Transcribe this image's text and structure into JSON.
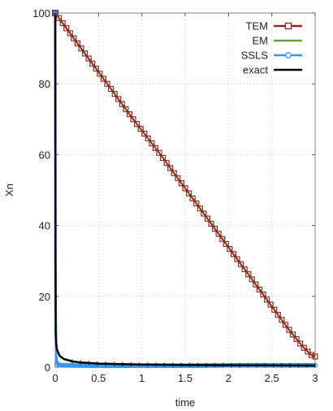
{
  "chart_data": {
    "type": "line",
    "title": "",
    "xlabel": "time",
    "ylabel": "Xn",
    "xlim": [
      0,
      3
    ],
    "ylim": [
      0,
      100
    ],
    "xticks": [
      0,
      0.5,
      1,
      1.5,
      2,
      2.5,
      3
    ],
    "xtick_labels": [
      "0",
      "0.5",
      "1",
      "1.5",
      "2",
      "2.5",
      "3"
    ],
    "yticks": [
      0,
      20,
      40,
      60,
      80,
      100
    ],
    "ytick_labels": [
      "0",
      "20",
      "40",
      "60",
      "80",
      "100"
    ],
    "grid": true,
    "legend_position": "top-right",
    "series": [
      {
        "name": "TEM",
        "color": "#8b2d1e",
        "marker": "square",
        "x": [
          0,
          0.3,
          0.6,
          0.9,
          1.2,
          1.5,
          1.8,
          2.1,
          2.4,
          2.7,
          2.85,
          2.95,
          3.0
        ],
        "y": [
          100,
          90,
          80,
          70,
          60.5,
          50.5,
          40.5,
          30.5,
          20.5,
          10.5,
          6,
          3.5,
          3
        ]
      },
      {
        "name": "EM",
        "color": "#5aa43a",
        "marker": "none",
        "x": [
          0,
          0.002,
          0.01,
          0.02,
          0.05,
          0.1,
          0.5,
          1,
          1.5,
          2,
          2.5,
          3
        ],
        "y": [
          100,
          25,
          4,
          1,
          0.5,
          0.4,
          0.3,
          0.3,
          0.3,
          0.3,
          0.3,
          0.3
        ]
      },
      {
        "name": "SSLS",
        "color": "#3399ee",
        "marker": "circle",
        "x": [
          0,
          0.002,
          0.01,
          0.02,
          0.05,
          0.1,
          0.5,
          1,
          1.5,
          2,
          2.5,
          3
        ],
        "y": [
          100,
          30,
          3,
          1,
          0.6,
          0.5,
          0.4,
          0.4,
          0.4,
          0.5,
          0.5,
          0.5
        ]
      },
      {
        "name": "exact",
        "color": "#000000",
        "marker": "none",
        "x": [
          0,
          0.005,
          0.01,
          0.02,
          0.05,
          0.1,
          0.2,
          0.3,
          0.5,
          0.75,
          1,
          1.5,
          2,
          2.5,
          3
        ],
        "y": [
          100,
          10,
          7,
          5,
          3.2,
          2.3,
          1.6,
          1.3,
          1.0,
          0.85,
          0.75,
          0.62,
          0.55,
          0.5,
          0.45
        ]
      }
    ]
  }
}
